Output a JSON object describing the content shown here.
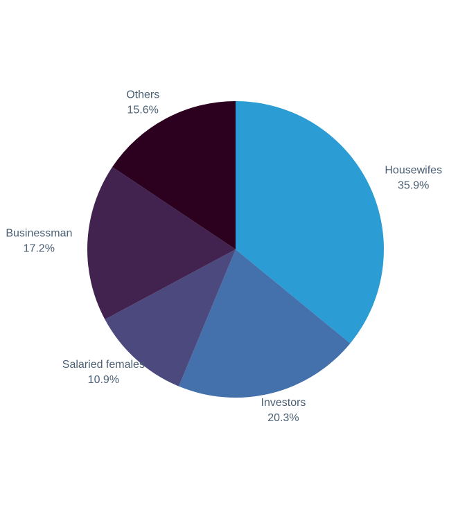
{
  "chart_data": {
    "type": "pie",
    "categories": [
      "Housewifes",
      "Investors",
      "Salaried females",
      "Businessman",
      "Others"
    ],
    "values": [
      35.9,
      20.3,
      10.9,
      17.2,
      15.6
    ],
    "value_labels": [
      "35.9%",
      "20.3%",
      "10.9%",
      "17.2%",
      "15.6%"
    ],
    "colors": [
      "#2b9cd4",
      "#4471ac",
      "#4b497e",
      "#42234f",
      "#2c001f"
    ]
  }
}
